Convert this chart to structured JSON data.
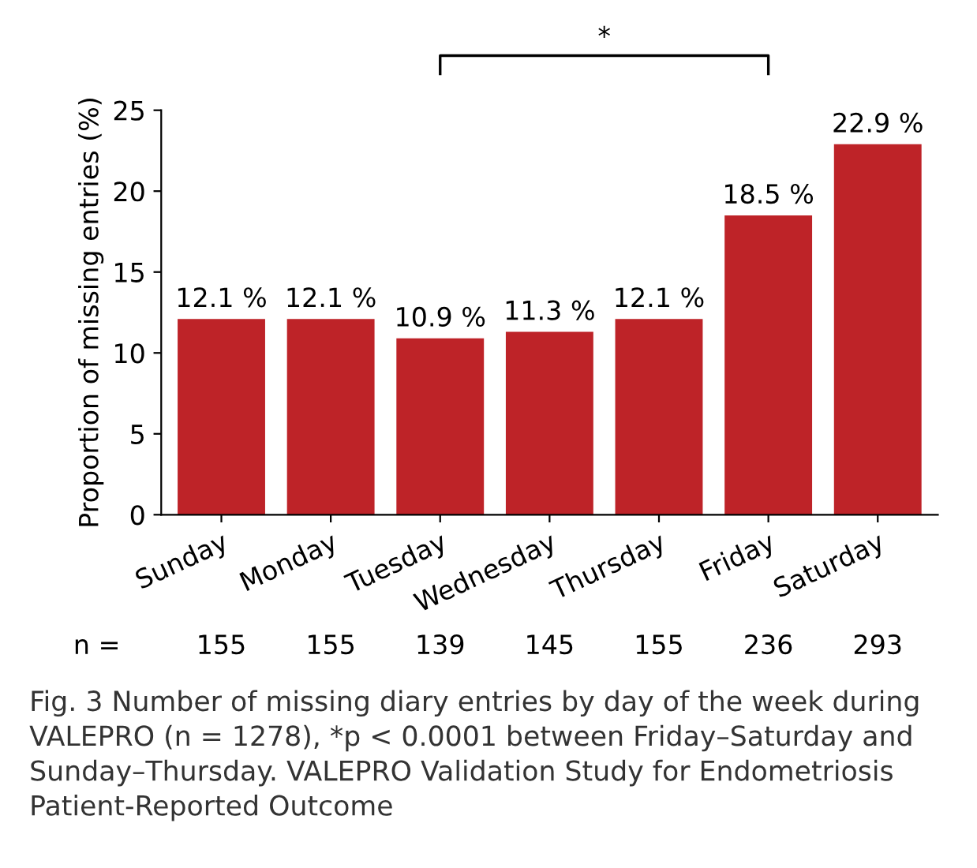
{
  "chart_data": {
    "type": "bar",
    "ylabel": "Proportion of missing entries (%)",
    "categories": [
      "Sunday",
      "Monday",
      "Tuesday",
      "Wednesday",
      "Thursday",
      "Friday",
      "Saturday"
    ],
    "values": [
      12.1,
      12.1,
      10.9,
      11.3,
      12.1,
      18.5,
      22.9
    ],
    "value_labels": [
      "12.1 %",
      "12.1 %",
      "10.9 %",
      "11.3 %",
      "12.1 %",
      "18.5 %",
      "22.9 %"
    ],
    "color": "#be2328",
    "ylim": [
      0,
      25
    ],
    "yticks": [
      0,
      5,
      10,
      15,
      20,
      25
    ],
    "grid": false,
    "legend": false,
    "annotations": [
      "*",
      "n =",
      "155",
      "155",
      "139",
      "145",
      "155",
      "236",
      "293",
      "Fig. 3 Number of missing diary entries by day of the week during VALEPRO (n = 1278), *p < 0.0001 between Friday–Saturday and Sunday–Thursday. VALEPRO Validation Study for Endometriosis Patient-Reported Outcome"
    ]
  }
}
